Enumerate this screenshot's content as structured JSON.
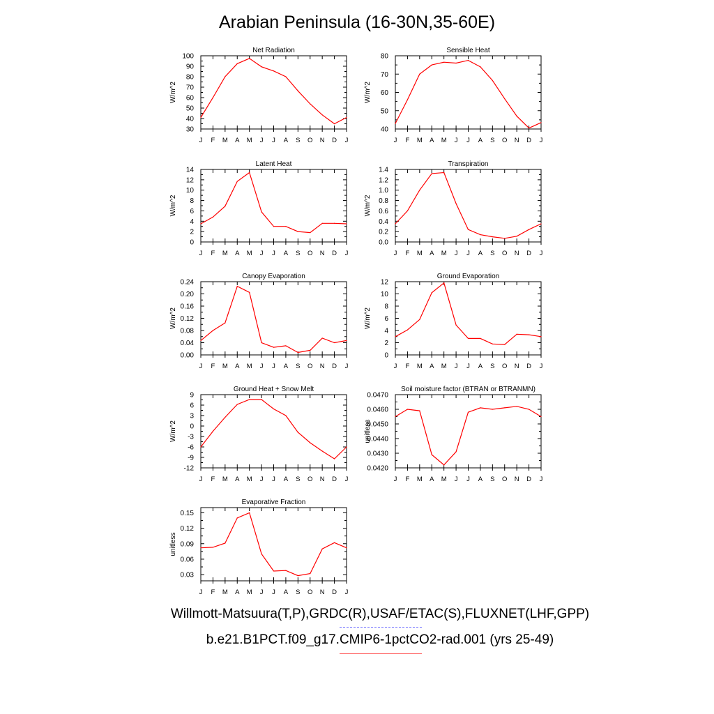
{
  "title": "Arabian Peninsula (16-30N,35-60E)",
  "footer": {
    "obs_sources": "Willmott-Matsuura(T,P),GRDC(R),USAF/ETAC(S),FLUXNET(LHF,GPP)",
    "model_case": "b.e21.B1PCT.f09_g17.CMIP6-1pctCO2-rad.001 (yrs 25-49)"
  },
  "colors": {
    "model_line": "#ff0000",
    "obs_line": "#6a6aff",
    "model_legend": "#ff6666"
  },
  "chart_data": [
    {
      "type": "line",
      "title": "Net Radiation",
      "ylabel": "W/m^2",
      "categories": [
        "J",
        "F",
        "M",
        "A",
        "M",
        "J",
        "J",
        "A",
        "S",
        "O",
        "N",
        "D",
        "J"
      ],
      "values": [
        41,
        60,
        80,
        92.5,
        97.5,
        89.5,
        85.5,
        80,
        66.5,
        54,
        43.5,
        35,
        41
      ],
      "ylim": [
        30,
        100
      ],
      "yticks": [
        30,
        40,
        50,
        60,
        70,
        80,
        90,
        100
      ],
      "ticklabels": [
        "30",
        "40",
        "50",
        "60",
        "70",
        "80",
        "90",
        "100"
      ]
    },
    {
      "type": "line",
      "title": "Sensible Heat",
      "ylabel": "W/m^2",
      "categories": [
        "J",
        "F",
        "M",
        "A",
        "M",
        "J",
        "J",
        "A",
        "S",
        "O",
        "N",
        "D",
        "J"
      ],
      "values": [
        43,
        56,
        70,
        75,
        76.5,
        76,
        77.5,
        74,
        66.5,
        56.5,
        47,
        40.5,
        43.5
      ],
      "ylim": [
        40,
        80
      ],
      "yticks": [
        40,
        50,
        60,
        70,
        80
      ],
      "ticklabels": [
        "40",
        "50",
        "60",
        "70",
        "80"
      ]
    },
    {
      "type": "line",
      "title": "Latent Heat",
      "ylabel": "W/m^2",
      "categories": [
        "J",
        "F",
        "M",
        "A",
        "M",
        "J",
        "J",
        "A",
        "S",
        "O",
        "N",
        "D",
        "J"
      ],
      "values": [
        3.5,
        4.8,
        6.9,
        11.7,
        13.4,
        5.8,
        3,
        3,
        2,
        1.8,
        3.6,
        3.6,
        3.5
      ],
      "ylim": [
        0,
        14
      ],
      "yticks": [
        0,
        2,
        4,
        6,
        8,
        10,
        12,
        14
      ],
      "ticklabels": [
        "0",
        "2",
        "4",
        "6",
        "8",
        "10",
        "12",
        "14"
      ]
    },
    {
      "type": "line",
      "title": "Transpiration",
      "ylabel": "W/m^2",
      "categories": [
        "J",
        "F",
        "M",
        "A",
        "M",
        "J",
        "J",
        "A",
        "S",
        "O",
        "N",
        "D",
        "J"
      ],
      "values": [
        0.35,
        0.6,
        1.0,
        1.32,
        1.34,
        0.74,
        0.24,
        0.14,
        0.1,
        0.07,
        0.11,
        0.24,
        0.35
      ],
      "ylim": [
        0,
        1.4
      ],
      "yticks": [
        0,
        0.2,
        0.4,
        0.6,
        0.8,
        1.0,
        1.2,
        1.4
      ],
      "ticklabels": [
        "0.0",
        "0.2",
        "0.4",
        "0.6",
        "0.8",
        "1.0",
        "1.2",
        "1.4"
      ]
    },
    {
      "type": "line",
      "title": "Canopy Evaporation",
      "ylabel": "W/m^2",
      "categories": [
        "J",
        "F",
        "M",
        "A",
        "M",
        "J",
        "J",
        "A",
        "S",
        "O",
        "N",
        "D",
        "J"
      ],
      "values": [
        0.047,
        0.08,
        0.105,
        0.225,
        0.205,
        0.04,
        0.025,
        0.03,
        0.008,
        0.015,
        0.055,
        0.04,
        0.047
      ],
      "ylim": [
        0,
        0.24
      ],
      "yticks": [
        0,
        0.04,
        0.08,
        0.12,
        0.16,
        0.2,
        0.24
      ],
      "ticklabels": [
        "0.00",
        "0.04",
        "0.08",
        "0.12",
        "0.16",
        "0.20",
        "0.24"
      ]
    },
    {
      "type": "line",
      "title": "Ground Evaporation",
      "ylabel": "W/m^2",
      "categories": [
        "J",
        "F",
        "M",
        "A",
        "M",
        "J",
        "J",
        "A",
        "S",
        "O",
        "N",
        "D",
        "J"
      ],
      "values": [
        3,
        4.1,
        5.8,
        10.2,
        11.8,
        4.9,
        2.7,
        2.7,
        1.8,
        1.7,
        3.4,
        3.3,
        3
      ],
      "ylim": [
        0,
        12
      ],
      "yticks": [
        0,
        2,
        4,
        6,
        8,
        10,
        12
      ],
      "ticklabels": [
        "0",
        "2",
        "4",
        "6",
        "8",
        "10",
        "12"
      ]
    },
    {
      "type": "line",
      "title": "Ground Heat + Snow Melt",
      "ylabel": "W/m^2",
      "categories": [
        "J",
        "F",
        "M",
        "A",
        "M",
        "J",
        "J",
        "A",
        "S",
        "O",
        "N",
        "D",
        "J"
      ],
      "values": [
        -6,
        -1.5,
        2.5,
        6.2,
        7.6,
        7.6,
        4.9,
        3,
        -1.8,
        -4.8,
        -7.2,
        -9.4,
        -6
      ],
      "ylim": [
        -12,
        9
      ],
      "yticks": [
        -12,
        -9,
        -6,
        -3,
        0,
        3,
        6,
        9
      ],
      "ticklabels": [
        "-12",
        "-9",
        "-6",
        "-3",
        "0",
        "3",
        "6",
        "9"
      ]
    },
    {
      "type": "line",
      "title": "Soil moisture factor (BTRAN or BTRANMN)",
      "ylabel": "unitless",
      "categories": [
        "J",
        "F",
        "M",
        "A",
        "M",
        "J",
        "J",
        "A",
        "S",
        "O",
        "N",
        "D",
        "J"
      ],
      "values": [
        0.0455,
        0.046,
        0.0459,
        0.0429,
        0.0422,
        0.0431,
        0.0458,
        0.0461,
        0.046,
        0.0461,
        0.0462,
        0.046,
        0.0455
      ],
      "ylim": [
        0.042,
        0.047
      ],
      "yticks": [
        0.042,
        0.043,
        0.044,
        0.045,
        0.046,
        0.047
      ],
      "ticklabels": [
        "0.0420",
        "0.0430",
        "0.0440",
        "0.0450",
        "0.0460",
        "0.0470"
      ]
    },
    {
      "type": "line",
      "title": "Evaporative Fraction",
      "ylabel": "unitless",
      "categories": [
        "J",
        "F",
        "M",
        "A",
        "M",
        "J",
        "J",
        "A",
        "S",
        "O",
        "N",
        "D",
        "J"
      ],
      "values": [
        0.082,
        0.083,
        0.091,
        0.14,
        0.15,
        0.07,
        0.037,
        0.038,
        0.028,
        0.032,
        0.08,
        0.092,
        0.082
      ],
      "ylim": [
        0.018,
        0.16
      ],
      "yticks": [
        0.03,
        0.06,
        0.09,
        0.12,
        0.15
      ],
      "ticklabels": [
        "0.03",
        "0.06",
        "0.09",
        "0.12",
        "0.15"
      ]
    }
  ]
}
